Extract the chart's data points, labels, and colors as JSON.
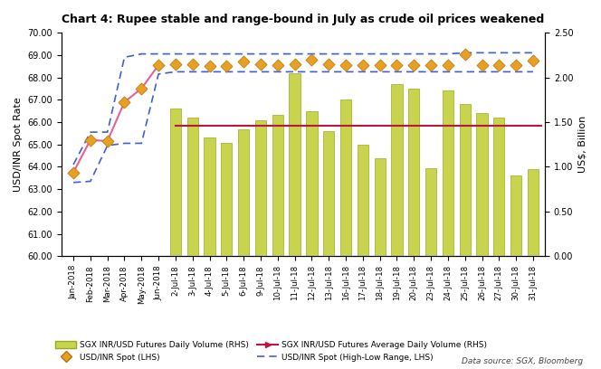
{
  "title": "Chart 4: Rupee stable and range-bound in July as crude oil prices weakened",
  "ylabel_left": "USD/INR Spot Rate",
  "ylabel_right": "US$, Billion",
  "datasource": "Data source: SGX, Bloomberg",
  "categories": [
    "Jan-2018",
    "Feb-2018",
    "Mar-2018",
    "Apr-2018",
    "May-2018",
    "Jun-2018",
    "2-Jul-18",
    "3-Jul-18",
    "4-Jul-18",
    "5-Jul-18",
    "6-Jul-18",
    "9-Jul-18",
    "10-Jul-18",
    "11-Jul-18",
    "12-Jul-18",
    "13-Jul-18",
    "16-Jul-18",
    "17-Jul-18",
    "18-Jul-18",
    "19-Jul-18",
    "20-Jul-18",
    "23-Jul-18",
    "24-Jul-18",
    "25-Jul-18",
    "26-Jul-18",
    "27-Jul-18",
    "30-Jul-18",
    "31-Jul-18"
  ],
  "bar_values": [
    0,
    0,
    0,
    0,
    0,
    0,
    1.65,
    1.55,
    1.33,
    1.27,
    1.42,
    1.52,
    1.58,
    2.05,
    1.62,
    1.4,
    1.75,
    1.25,
    1.1,
    1.92,
    1.87,
    0.98,
    1.85,
    1.7,
    1.6,
    1.55,
    0.9,
    0.97
  ],
  "spot_values": [
    63.75,
    65.2,
    65.15,
    66.9,
    67.5,
    68.55,
    68.6,
    68.6,
    68.5,
    68.5,
    68.7,
    68.6,
    68.55,
    68.6,
    68.8,
    68.6,
    68.55,
    68.55,
    68.55,
    68.55,
    68.55,
    68.55,
    68.55,
    69.05,
    68.55,
    68.55,
    68.55,
    68.75
  ],
  "spot_high": [
    64.1,
    65.55,
    65.55,
    68.9,
    69.05,
    69.05,
    69.05,
    69.05,
    69.05,
    69.05,
    69.05,
    69.05,
    69.05,
    69.05,
    69.05,
    69.05,
    69.05,
    69.05,
    69.05,
    69.05,
    69.05,
    69.05,
    69.05,
    69.1,
    69.1,
    69.1,
    69.1,
    69.1
  ],
  "spot_low": [
    63.3,
    63.35,
    64.95,
    65.05,
    65.05,
    68.15,
    68.25,
    68.25,
    68.25,
    68.25,
    68.25,
    68.25,
    68.25,
    68.25,
    68.25,
    68.25,
    68.25,
    68.25,
    68.25,
    68.25,
    68.25,
    68.25,
    68.25,
    68.25,
    68.25,
    68.25,
    68.25,
    68.25
  ],
  "monthly_spot_line": [
    63.75,
    65.2,
    65.15,
    66.9,
    67.5,
    68.55
  ],
  "avg_line_value": 1.46,
  "ylim_left": [
    60.0,
    70.0
  ],
  "ylim_right": [
    0.0,
    2.5
  ],
  "yticks_left": [
    60.0,
    61.0,
    62.0,
    63.0,
    64.0,
    65.0,
    66.0,
    67.0,
    68.0,
    69.0,
    70.0
  ],
  "yticks_right": [
    0.0,
    0.5,
    1.0,
    1.5,
    2.0,
    2.5
  ],
  "bar_color": "#C8D44E",
  "bar_edge_color": "#9AAA20",
  "spot_marker_color": "#E8A020",
  "spot_marker_edge_color": "#B87010",
  "spot_line_color": "#E8609A",
  "avg_line_color": "#C0143C",
  "high_low_color": "#4060CC",
  "background_color": "#FFFFFF",
  "figsize": [
    6.64,
    4.08
  ],
  "dpi": 100
}
